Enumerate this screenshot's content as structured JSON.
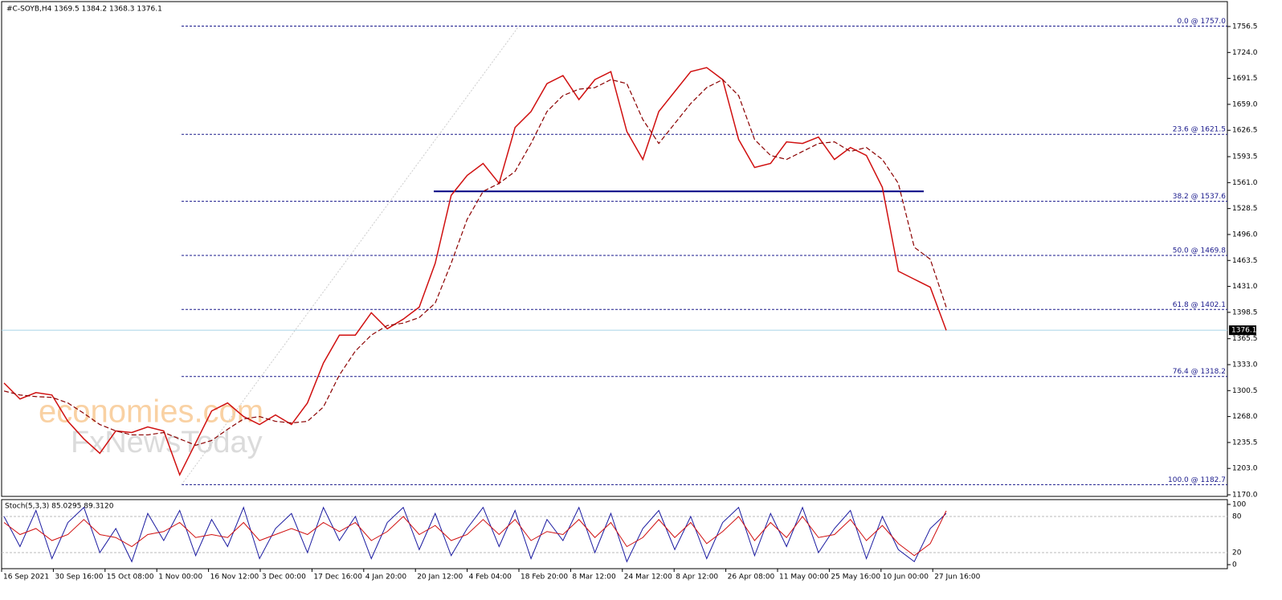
{
  "chart_data": {
    "type": "line",
    "header": "#C-SOYB,H4  1369.5 1384.2 1368.3 1376.1",
    "watermark": "economies.com",
    "watermark2": "FxNewsToday",
    "x_labels": [
      "16 Sep 2021",
      "30 Sep 16:00",
      "15 Oct 08:00",
      "1 Nov 00:00",
      "16 Nov 12:00",
      "3 Dec 00:00",
      "17 Dec 16:00",
      "4 Jan 20:00",
      "20 Jan 12:00",
      "4 Feb 04:00",
      "18 Feb 20:00",
      "8 Mar 12:00",
      "24 Mar 12:00",
      "8 Apr 12:00",
      "26 Apr 08:00",
      "11 May 00:00",
      "25 May 16:00",
      "10 Jun 00:00",
      "27 Jun 16:00"
    ],
    "ylim": [
      1168,
      1789.7
    ],
    "yticks": [
      1756.5,
      {
        "value": 1724.0,
        "label": "1724.0"
      },
      1691.5,
      {
        "value": 1659.0,
        "label": "1659.0"
      },
      1626.5,
      1593.5,
      {
        "value": 1561.0,
        "label": "1561.0"
      },
      1528.5,
      {
        "value": 1496.0,
        "label": "1496.0"
      },
      1463.5,
      {
        "value": 1431.0,
        "label": "1431.0"
      },
      1398.5,
      1365.5,
      {
        "value": 1333.0,
        "label": "1333.0"
      },
      1300.5,
      {
        "value": 1268.0,
        "label": "1268.0"
      },
      1235.5,
      {
        "value": 1203.0,
        "label": "1203.0"
      },
      {
        "value": 1170.0,
        "label": "1170.0"
      }
    ],
    "fib_levels": [
      {
        "value": 1757.0,
        "label": "0.0 @ 1757.0"
      },
      {
        "value": 1621.5,
        "label": "23.6 @ 1621.5"
      },
      {
        "value": 1537.6,
        "label": "38.2 @ 1537.6"
      },
      {
        "value": 1469.8,
        "label": "50.0 @ 1469.8"
      },
      {
        "value": 1402.1,
        "label": "61.8 @ 1402.1"
      },
      {
        "value": 1318.2,
        "label": "76.4 @ 1318.2"
      },
      {
        "value": 1182.7,
        "label": "100.0 @ 1182.7"
      }
    ],
    "support": 1550,
    "last_price": 1376.1,
    "series": [
      {
        "name": "Price",
        "color": "#d01010",
        "values": [
          1310,
          1290,
          1298,
          1295,
          1262,
          1240,
          1222,
          1250,
          1248,
          1255,
          1250,
          1195,
          1235,
          1275,
          1285,
          1268,
          1258,
          1270,
          1258,
          1285,
          1335,
          1370,
          1370,
          1398,
          1378,
          1390,
          1405,
          1460,
          1545,
          1570,
          1585,
          1560,
          1630,
          1650,
          1685,
          1695,
          1665,
          1690,
          1700,
          1625,
          1590,
          1650,
          1675,
          1700,
          1705,
          1690,
          1615,
          1580,
          1585,
          1612,
          1610,
          1618,
          1590,
          1605,
          1595,
          1555,
          1450,
          1440,
          1430,
          1376
        ]
      },
      {
        "name": "MA",
        "color": "#8b0000",
        "values": [
          1300,
          1295,
          1293,
          1292,
          1285,
          1272,
          1258,
          1250,
          1245,
          1245,
          1248,
          1240,
          1232,
          1238,
          1252,
          1265,
          1268,
          1262,
          1260,
          1262,
          1280,
          1320,
          1350,
          1370,
          1382,
          1385,
          1392,
          1410,
          1460,
          1515,
          1550,
          1560,
          1575,
          1610,
          1650,
          1670,
          1678,
          1680,
          1690,
          1685,
          1640,
          1610,
          1635,
          1660,
          1680,
          1690,
          1670,
          1615,
          1595,
          1590,
          1600,
          1610,
          1612,
          1600,
          1605,
          1590,
          1560,
          1480,
          1465,
          1405
        ]
      }
    ],
    "stoch": {
      "label": "Stoch(5,3,3) 85.0295 89.3120",
      "ylim": [
        0,
        100
      ],
      "yticks": [
        0,
        20,
        80,
        100
      ],
      "series": [
        {
          "name": "Main",
          "color": "#1a1aa0",
          "values": [
            80,
            30,
            90,
            10,
            70,
            95,
            20,
            60,
            5,
            85,
            40,
            90,
            15,
            75,
            30,
            95,
            10,
            60,
            85,
            20,
            95,
            40,
            80,
            10,
            70,
            95,
            25,
            85,
            15,
            60,
            95,
            30,
            90,
            10,
            75,
            40,
            95,
            20,
            85,
            5,
            60,
            90,
            25,
            80,
            10,
            70,
            95,
            15,
            85,
            30,
            95,
            20,
            60,
            90,
            10,
            80,
            25,
            5,
            60,
            85.0295
          ]
        },
        {
          "name": "Signal",
          "color": "#d01010",
          "values": [
            70,
            50,
            60,
            40,
            50,
            75,
            50,
            45,
            30,
            50,
            55,
            70,
            45,
            50,
            45,
            70,
            40,
            50,
            60,
            50,
            70,
            55,
            70,
            40,
            55,
            80,
            50,
            65,
            40,
            50,
            75,
            50,
            75,
            40,
            55,
            50,
            75,
            45,
            70,
            30,
            45,
            75,
            45,
            70,
            35,
            55,
            80,
            40,
            70,
            45,
            80,
            45,
            50,
            75,
            40,
            65,
            35,
            15,
            35,
            89.312
          ]
        }
      ]
    }
  }
}
